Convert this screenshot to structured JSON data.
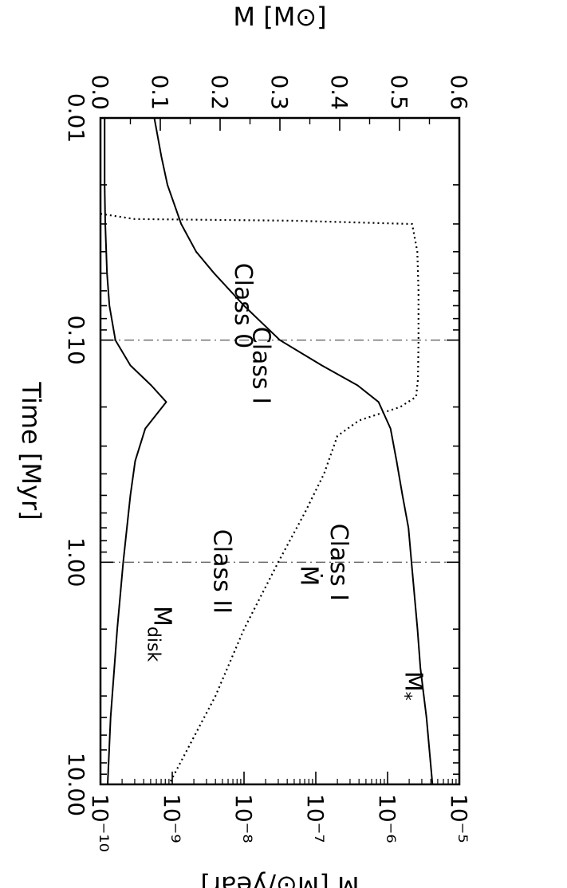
{
  "chart_data": {
    "type": "line",
    "orientation": "rotated-90-clockwise",
    "xlabel": "Time [Myr]",
    "xscale": "log",
    "xlim": [
      0.01,
      10.0
    ],
    "xticks": [
      "0.01",
      "0.10",
      "1.00",
      "10.00"
    ],
    "ylabel_left": "M [M⊙]",
    "ylim_left": [
      0.0,
      0.6
    ],
    "yticks_left": [
      "0.0",
      "0.1",
      "0.2",
      "0.3",
      "0.4",
      "0.5",
      "0.6"
    ],
    "ylabel_right": "Ṁ [M⊙/year]",
    "yscale_right": "log",
    "ylim_right": [
      1e-10,
      1e-05
    ],
    "yticks_right": [
      "10⁻¹⁰",
      "10⁻⁹",
      "10⁻⁸",
      "10⁻⁷",
      "10⁻⁶",
      "10⁻⁵"
    ],
    "vlines": [
      0.1,
      1.0
    ],
    "series": [
      {
        "name": "M*",
        "axis": "left",
        "style": "solid",
        "x": [
          0.01,
          0.015,
          0.02,
          0.03,
          0.04,
          0.05,
          0.07,
          0.1,
          0.13,
          0.16,
          0.19,
          0.25,
          0.35,
          0.5,
          0.7,
          1.0,
          2.0,
          3.0,
          5.0,
          10.0
        ],
        "y": [
          0.09,
          0.102,
          0.112,
          0.135,
          0.16,
          0.19,
          0.24,
          0.3,
          0.37,
          0.43,
          0.465,
          0.485,
          0.495,
          0.505,
          0.515,
          0.52,
          0.53,
          0.535,
          0.545,
          0.555
        ]
      },
      {
        "name": "Mdisk",
        "axis": "left",
        "style": "solid",
        "x": [
          0.01,
          0.02,
          0.03,
          0.05,
          0.07,
          0.1,
          0.13,
          0.16,
          0.19,
          0.25,
          0.35,
          0.5,
          1.0,
          2.0,
          5.0,
          10.0
        ],
        "y": [
          0.007,
          0.007,
          0.008,
          0.011,
          0.015,
          0.025,
          0.05,
          0.085,
          0.11,
          0.075,
          0.058,
          0.05,
          0.038,
          0.028,
          0.017,
          0.012
        ]
      },
      {
        "name": "Ṁ",
        "axis": "right",
        "style": "dotted",
        "x": [
          0.027,
          0.0285,
          0.029,
          0.03,
          0.04,
          0.06,
          0.1,
          0.15,
          0.18,
          0.2,
          0.23,
          0.27,
          0.4,
          0.6,
          1.0,
          2.0,
          4.0,
          10.0
        ],
        "y": [
          1e-10,
          3e-10,
          5e-08,
          2.2e-06,
          2.6e-06,
          2.7e-06,
          2.7e-06,
          2.65e-06,
          2.5e-06,
          1.5e-06,
          4e-07,
          2e-07,
          1.3e-07,
          7e-08,
          3e-08,
          1e-08,
          4e-09,
          9e-10
        ]
      }
    ],
    "annotations": [
      {
        "text": "Class 0",
        "x": 0.07,
        "y": 0.225,
        "axis": "left"
      },
      {
        "text": "Class I",
        "x": 0.13,
        "y": 0.255,
        "axis": "left"
      },
      {
        "text": "Class I",
        "x": 1.0,
        "y": 0.385,
        "axis": "left"
      },
      {
        "text": "Class II",
        "x": 1.1,
        "y": 0.19,
        "axis": "left"
      },
      {
        "text_main": "M",
        "text_sub": "*",
        "x": 3.6,
        "y": 0.51,
        "axis": "left"
      },
      {
        "text_main": "Ṁ",
        "text_sub": "",
        "x": 1.15,
        "y": 0.335,
        "axis": "left"
      },
      {
        "text_main": "M",
        "text_sub": "disk",
        "x": 2.1,
        "y": 0.09,
        "axis": "left"
      }
    ]
  }
}
